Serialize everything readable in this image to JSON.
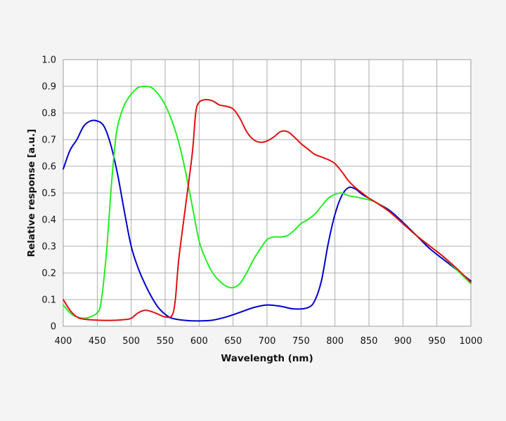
{
  "chart_data": {
    "type": "line",
    "xlabel": "Wavelength (nm)",
    "ylabel": "Relative response [a.u.]",
    "xlim": [
      400,
      1000
    ],
    "ylim": [
      0,
      1.0
    ],
    "x_ticks": [
      "400",
      "450",
      "500",
      "550",
      "600",
      "650",
      "700",
      "750",
      "800",
      "850",
      "900",
      "950",
      "1000"
    ],
    "y_ticks": [
      "0",
      "0.1",
      "0.2",
      "0.3",
      "0.4",
      "0.5",
      "0.6",
      "0.7",
      "0.8",
      "0.9",
      "1.0"
    ],
    "grid": true,
    "series": [
      {
        "color": "#0000cc",
        "points": [
          [
            400,
            0.59
          ],
          [
            410,
            0.66
          ],
          [
            420,
            0.7
          ],
          [
            430,
            0.75
          ],
          [
            440,
            0.77
          ],
          [
            450,
            0.77
          ],
          [
            460,
            0.75
          ],
          [
            470,
            0.68
          ],
          [
            480,
            0.57
          ],
          [
            490,
            0.43
          ],
          [
            500,
            0.3
          ],
          [
            510,
            0.22
          ],
          [
            520,
            0.16
          ],
          [
            530,
            0.11
          ],
          [
            540,
            0.07
          ],
          [
            550,
            0.045
          ],
          [
            560,
            0.03
          ],
          [
            580,
            0.022
          ],
          [
            600,
            0.02
          ],
          [
            620,
            0.023
          ],
          [
            640,
            0.035
          ],
          [
            660,
            0.052
          ],
          [
            680,
            0.07
          ],
          [
            700,
            0.08
          ],
          [
            720,
            0.075
          ],
          [
            740,
            0.065
          ],
          [
            760,
            0.07
          ],
          [
            770,
            0.095
          ],
          [
            780,
            0.17
          ],
          [
            790,
            0.31
          ],
          [
            800,
            0.42
          ],
          [
            810,
            0.49
          ],
          [
            820,
            0.52
          ],
          [
            830,
            0.515
          ],
          [
            840,
            0.495
          ],
          [
            850,
            0.48
          ],
          [
            860,
            0.465
          ],
          [
            880,
            0.435
          ],
          [
            900,
            0.39
          ],
          [
            920,
            0.34
          ],
          [
            940,
            0.29
          ],
          [
            960,
            0.25
          ],
          [
            980,
            0.21
          ],
          [
            1000,
            0.17
          ]
        ]
      },
      {
        "color": "#22ee22",
        "points": [
          [
            400,
            0.08
          ],
          [
            410,
            0.05
          ],
          [
            420,
            0.035
          ],
          [
            430,
            0.03
          ],
          [
            440,
            0.035
          ],
          [
            450,
            0.05
          ],
          [
            455,
            0.08
          ],
          [
            460,
            0.18
          ],
          [
            465,
            0.32
          ],
          [
            470,
            0.5
          ],
          [
            475,
            0.65
          ],
          [
            480,
            0.75
          ],
          [
            490,
            0.83
          ],
          [
            500,
            0.87
          ],
          [
            510,
            0.895
          ],
          [
            520,
            0.9
          ],
          [
            530,
            0.895
          ],
          [
            540,
            0.87
          ],
          [
            550,
            0.83
          ],
          [
            560,
            0.77
          ],
          [
            570,
            0.69
          ],
          [
            580,
            0.58
          ],
          [
            590,
            0.45
          ],
          [
            600,
            0.32
          ],
          [
            610,
            0.25
          ],
          [
            620,
            0.2
          ],
          [
            630,
            0.17
          ],
          [
            640,
            0.15
          ],
          [
            650,
            0.145
          ],
          [
            660,
            0.16
          ],
          [
            670,
            0.2
          ],
          [
            680,
            0.25
          ],
          [
            690,
            0.29
          ],
          [
            700,
            0.325
          ],
          [
            710,
            0.335
          ],
          [
            720,
            0.335
          ],
          [
            730,
            0.34
          ],
          [
            740,
            0.36
          ],
          [
            750,
            0.385
          ],
          [
            760,
            0.4
          ],
          [
            770,
            0.42
          ],
          [
            780,
            0.45
          ],
          [
            790,
            0.48
          ],
          [
            800,
            0.495
          ],
          [
            810,
            0.5
          ],
          [
            820,
            0.49
          ],
          [
            840,
            0.48
          ],
          [
            860,
            0.465
          ],
          [
            880,
            0.43
          ],
          [
            900,
            0.385
          ],
          [
            920,
            0.34
          ],
          [
            940,
            0.3
          ],
          [
            960,
            0.26
          ],
          [
            980,
            0.21
          ],
          [
            1000,
            0.16
          ]
        ]
      },
      {
        "color": "#dd1111",
        "points": [
          [
            400,
            0.1
          ],
          [
            410,
            0.06
          ],
          [
            420,
            0.035
          ],
          [
            430,
            0.027
          ],
          [
            450,
            0.023
          ],
          [
            470,
            0.022
          ],
          [
            490,
            0.025
          ],
          [
            500,
            0.03
          ],
          [
            510,
            0.05
          ],
          [
            520,
            0.06
          ],
          [
            530,
            0.055
          ],
          [
            540,
            0.045
          ],
          [
            550,
            0.035
          ],
          [
            560,
            0.04
          ],
          [
            565,
            0.1
          ],
          [
            570,
            0.25
          ],
          [
            580,
            0.45
          ],
          [
            590,
            0.65
          ],
          [
            595,
            0.8
          ],
          [
            600,
            0.84
          ],
          [
            610,
            0.85
          ],
          [
            620,
            0.845
          ],
          [
            630,
            0.83
          ],
          [
            640,
            0.825
          ],
          [
            650,
            0.815
          ],
          [
            660,
            0.78
          ],
          [
            670,
            0.73
          ],
          [
            680,
            0.7
          ],
          [
            690,
            0.69
          ],
          [
            700,
            0.695
          ],
          [
            710,
            0.71
          ],
          [
            720,
            0.73
          ],
          [
            730,
            0.73
          ],
          [
            740,
            0.71
          ],
          [
            750,
            0.685
          ],
          [
            760,
            0.665
          ],
          [
            770,
            0.645
          ],
          [
            780,
            0.635
          ],
          [
            790,
            0.625
          ],
          [
            800,
            0.61
          ],
          [
            810,
            0.58
          ],
          [
            820,
            0.545
          ],
          [
            830,
            0.52
          ],
          [
            840,
            0.5
          ],
          [
            850,
            0.48
          ],
          [
            860,
            0.465
          ],
          [
            880,
            0.43
          ],
          [
            900,
            0.385
          ],
          [
            920,
            0.34
          ],
          [
            940,
            0.3
          ],
          [
            960,
            0.26
          ],
          [
            980,
            0.215
          ],
          [
            1000,
            0.165
          ]
        ]
      }
    ]
  }
}
